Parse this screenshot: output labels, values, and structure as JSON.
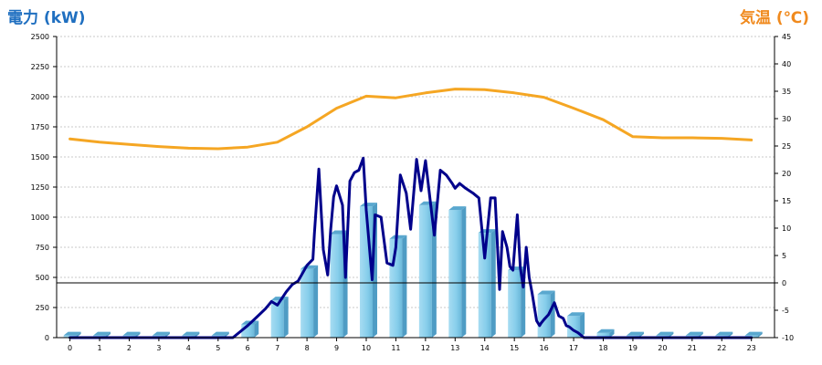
{
  "chart_data": {
    "type": "bar+line",
    "y_left_label": "電力 (kW)",
    "y_right_label": "気温 (℃)",
    "y_left_range": [
      0,
      2500
    ],
    "y_left_ticks": [
      0,
      250,
      500,
      750,
      1000,
      1250,
      1500,
      1750,
      2000,
      2250,
      2500
    ],
    "y_right_range": [
      -10,
      45
    ],
    "y_right_ticks": [
      -10,
      -5,
      0,
      5,
      10,
      15,
      20,
      25,
      30,
      35,
      40,
      45
    ],
    "categories": [
      "0",
      "1",
      "2",
      "3",
      "4",
      "5",
      "6",
      "7",
      "8",
      "9",
      "10",
      "11",
      "12",
      "13",
      "14",
      "15",
      "16",
      "17",
      "18",
      "19",
      "20",
      "21",
      "22",
      "23"
    ],
    "grid": true,
    "series": [
      {
        "kind": "bar",
        "axis": "left",
        "color": "#87ceeb",
        "values": [
          18,
          18,
          18,
          18,
          18,
          18,
          110,
          310,
          570,
          860,
          1090,
          820,
          1100,
          1060,
          870,
          560,
          360,
          180,
          40,
          18,
          18,
          18,
          18,
          18
        ]
      },
      {
        "kind": "line",
        "axis": "left",
        "color": "#00008b",
        "x": [
          0,
          1,
          2,
          3,
          4,
          5,
          5.5,
          6,
          6.3,
          6.6,
          6.8,
          7,
          7.3,
          7.5,
          7.7,
          8,
          8.2,
          8.25,
          8.4,
          8.55,
          8.7,
          8.8,
          8.9,
          9,
          9.2,
          9.3,
          9.45,
          9.6,
          9.75,
          9.9,
          10,
          10.2,
          10.3,
          10.5,
          10.7,
          10.9,
          11,
          11.15,
          11.35,
          11.5,
          11.7,
          11.85,
          12,
          12.2,
          12.3,
          12.5,
          12.7,
          12.9,
          13,
          13.15,
          13.35,
          13.6,
          13.8,
          14,
          14.2,
          14.35,
          14.5,
          14.6,
          14.75,
          14.85,
          14.95,
          15.1,
          15.2,
          15.3,
          15.4,
          15.5,
          15.6,
          15.75,
          15.85,
          15.9,
          16,
          16.15,
          16.35,
          16.5,
          16.65,
          16.75,
          16.85,
          17,
          17.15,
          17.35,
          17.5,
          17.75,
          18,
          19,
          20,
          21,
          22,
          23
        ],
        "values": [
          0,
          0,
          0,
          0,
          0,
          0,
          0,
          100,
          170,
          240,
          300,
          270,
          380,
          440,
          470,
          600,
          650,
          860,
          1400,
          730,
          520,
          900,
          1170,
          1260,
          1100,
          500,
          1300,
          1370,
          1390,
          1490,
          1060,
          480,
          1020,
          1000,
          620,
          600,
          750,
          1350,
          1200,
          900,
          1480,
          1220,
          1470,
          1050,
          850,
          1390,
          1350,
          1280,
          1240,
          1280,
          1240,
          1200,
          1160,
          660,
          1160,
          1160,
          400,
          880,
          750,
          590,
          560,
          1020,
          580,
          420,
          750,
          500,
          370,
          140,
          100,
          120,
          150,
          190,
          290,
          180,
          160,
          100,
          90,
          60,
          40,
          0,
          0,
          0,
          0,
          0,
          0,
          0,
          0,
          0
        ]
      },
      {
        "kind": "line",
        "axis": "right",
        "color": "#f5a623",
        "x": [
          0,
          1,
          2,
          3,
          4,
          5,
          6,
          7,
          8,
          9,
          10,
          11,
          12,
          13,
          14,
          15,
          16,
          17,
          18,
          19,
          20,
          21,
          22,
          23
        ],
        "values": [
          26.3,
          25.7,
          25.3,
          24.9,
          24.6,
          24.5,
          24.8,
          25.7,
          28.5,
          31.9,
          34.1,
          33.8,
          34.7,
          35.4,
          35.3,
          34.7,
          33.9,
          31.9,
          29.8,
          26.7,
          26.5,
          26.5,
          26.4,
          26.1
        ]
      }
    ]
  }
}
